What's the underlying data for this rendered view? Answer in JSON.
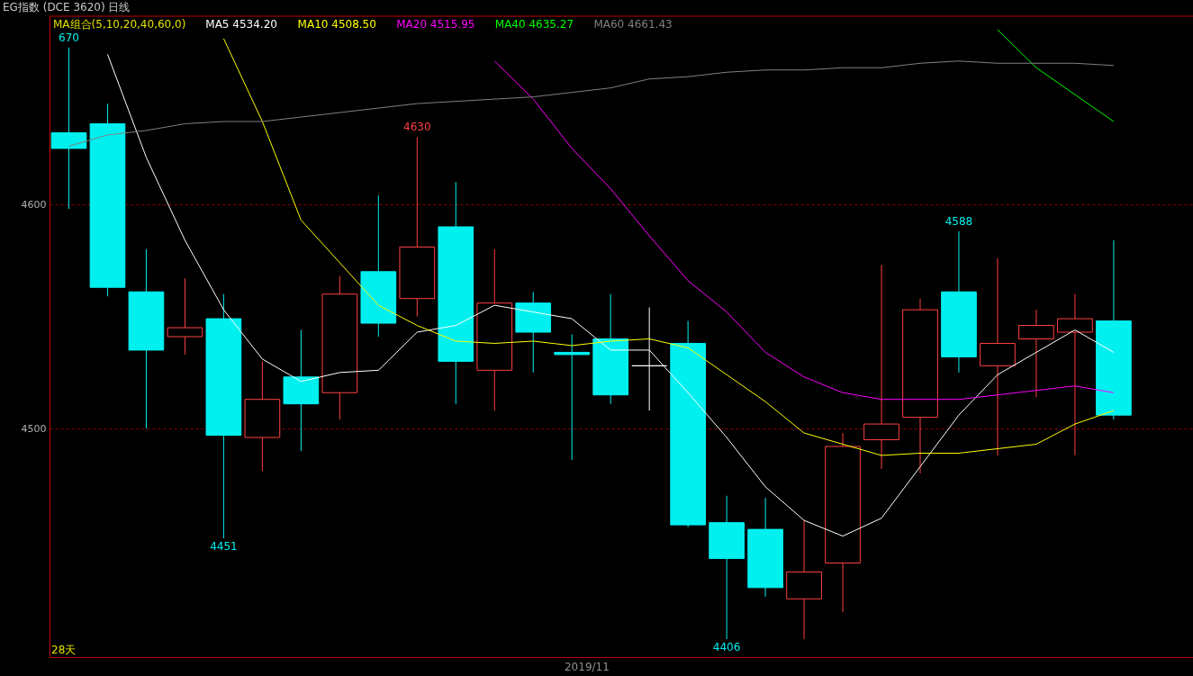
{
  "chart_data": {
    "type": "candlestick",
    "title": "EG指数 (DCE 3620) 日线",
    "categories": [
      null,
      null,
      null,
      null,
      null,
      null,
      null,
      null,
      null,
      null,
      null,
      null,
      null,
      null,
      null,
      null,
      null,
      null,
      null,
      null,
      null,
      null,
      null,
      null,
      null,
      null,
      null,
      null
    ],
    "ohlc": [
      [
        4632,
        4670,
        4598,
        4625
      ],
      [
        4636,
        4645,
        4559,
        4563
      ],
      [
        4561,
        4580,
        4500,
        4535
      ],
      [
        4541,
        4567,
        4533,
        4545
      ],
      [
        4549,
        4560,
        4451,
        4497
      ],
      [
        4496,
        4530,
        4481,
        4513
      ],
      [
        4523,
        4544,
        4490,
        4511
      ],
      [
        4516,
        4568,
        4504,
        4560
      ],
      [
        4570,
        4604,
        4541,
        4547
      ],
      [
        4558,
        4630,
        4550,
        4581
      ],
      [
        4590,
        4610,
        4511,
        4530
      ],
      [
        4526,
        4580,
        4508,
        4556
      ],
      [
        4556,
        4561,
        4525,
        4543
      ],
      [
        4534,
        4542,
        4486,
        4533
      ],
      [
        4540,
        4560,
        4511,
        4515
      ],
      [
        4528,
        4554,
        4508,
        4528
      ],
      [
        4538,
        4548,
        4456,
        4457
      ],
      [
        4458,
        4470,
        4406,
        4442
      ],
      [
        4455,
        4469,
        4425,
        4429
      ],
      [
        4424,
        4459,
        4406,
        4436
      ],
      [
        4440,
        4498,
        4418,
        4492
      ],
      [
        4495,
        4573,
        4482,
        4502
      ],
      [
        4505,
        4558,
        4480,
        4553
      ],
      [
        4561,
        4588,
        4525,
        4532
      ],
      [
        4528,
        4576,
        4488,
        4538
      ],
      [
        4540,
        4553,
        4514,
        4546
      ],
      [
        4543,
        4560,
        4488,
        4549
      ],
      [
        4548,
        4584,
        4504,
        4506
      ]
    ],
    "colors": [
      "#00f0f0",
      "#00f0f0",
      "#00f0f0",
      "#ff4040",
      "#00f0f0",
      "#ff4040",
      "#00f0f0",
      "#ff4040",
      "#00f0f0",
      "#ff4040",
      "#00f0f0",
      "#ff4040",
      "#00f0f0",
      "#00f0f0",
      "#00f0f0",
      "#ffffff",
      "#00f0f0",
      "#00f0f0",
      "#00f0f0",
      "#ff4040",
      "#ff4040",
      "#ff4040",
      "#ff4040",
      "#00f0f0",
      "#ff4040",
      "#ff4040",
      "#ff4040",
      "#00f0f0"
    ],
    "series": [
      {
        "name": "MA5 4534.20",
        "type": "line",
        "color": "#ffffff",
        "values": [
          null,
          4667,
          4621,
          4584,
          4553,
          4531,
          4521,
          4525,
          4526,
          4543,
          4546,
          4555,
          4552,
          4549,
          4535,
          4535,
          4516,
          4496,
          4474,
          4459,
          4452,
          4460,
          4483,
          4506,
          4524,
          4534,
          4544,
          4534
        ]
      },
      {
        "name": "MA10 4508.50",
        "type": "line",
        "color": "#ffff00",
        "values": [
          null,
          null,
          null,
          null,
          4674,
          4637,
          4593,
          4574,
          4555,
          4546,
          4539,
          4538,
          4539,
          4537,
          4539,
          4540,
          4536,
          4524,
          4512,
          4498,
          4493,
          4488,
          4489,
          4489,
          4491,
          4493,
          4502,
          4508
        ]
      },
      {
        "name": "MA20 4515.95",
        "type": "line",
        "color": "#ff00ff",
        "values": [
          null,
          null,
          null,
          null,
          null,
          null,
          null,
          null,
          null,
          null,
          null,
          4664,
          4647,
          4625,
          4607,
          4586,
          4566,
          4552,
          4534,
          4523,
          4516,
          4513,
          4513,
          4513,
          4515,
          4517,
          4519,
          4516
        ]
      },
      {
        "name": "MA40 4635.27",
        "type": "line",
        "color": "#00ff00",
        "values": [
          null,
          null,
          null,
          null,
          null,
          null,
          null,
          null,
          null,
          null,
          null,
          null,
          null,
          null,
          null,
          null,
          null,
          null,
          null,
          null,
          null,
          null,
          null,
          null,
          4678,
          4661,
          4649,
          4637
        ]
      },
      {
        "name": "MA60 4661.43",
        "type": "line",
        "color": "#808080",
        "values": [
          4626,
          4631,
          4633,
          4636,
          4637,
          4637,
          4639,
          4641,
          4643,
          4645,
          4646,
          4647,
          4648,
          4650,
          4652,
          4656,
          4657,
          4659,
          4660,
          4660,
          4661,
          4661,
          4663,
          4664,
          4663,
          4663,
          4663,
          4662
        ]
      }
    ],
    "ylim": [
      4398,
      4684
    ],
    "yticks": [
      4500,
      4600
    ],
    "grid": "y",
    "legend": "top left",
    "tick_labels": "y",
    "annotations": [
      "MA组合(5,10,20,40,60,0)",
      "2019/11",
      "28天",
      {
        "text": "670",
        "y": 4670
      },
      {
        "text": "4451",
        "y": 4451
      },
      {
        "text": "4630",
        "y": 4630
      },
      {
        "text": "4406",
        "y": 4406
      },
      {
        "text": "4588",
        "y": 4588
      }
    ]
  }
}
